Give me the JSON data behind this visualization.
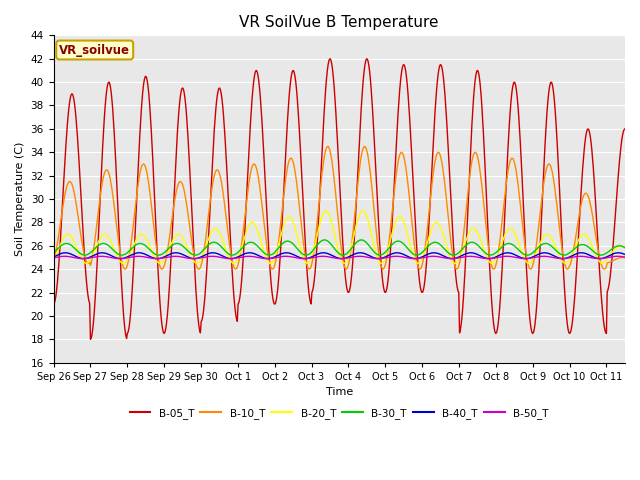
{
  "title": "VR SoilVue B Temperature",
  "ylabel": "Soil Temperature (C)",
  "xlabel": "Time",
  "ylim": [
    16,
    44
  ],
  "yticks": [
    16,
    18,
    20,
    22,
    24,
    26,
    28,
    30,
    32,
    34,
    36,
    38,
    40,
    42,
    44
  ],
  "x_labels": [
    "Sep 26",
    "Sep 27",
    "Sep 28",
    "Sep 29",
    "Sep 30",
    "Oct 1",
    "Oct 2",
    "Oct 3",
    "Oct 4",
    "Oct 5",
    "Oct 6",
    "Oct 7",
    "Oct 8",
    "Oct 9",
    "Oct 10",
    "Oct 11"
  ],
  "annotation_label": "VR_soilvue",
  "annotation_border_color": "#c8a000",
  "annotation_text_color": "#8B0000",
  "series_colors": {
    "B-05_T": "#cc0000",
    "B-10_T": "#ff8800",
    "B-20_T": "#ffff00",
    "B-30_T": "#00cc00",
    "B-40_T": "#0000cc",
    "B-50_T": "#cc00cc"
  },
  "fig_background": "#ffffff",
  "plot_background": "#e8e8e8",
  "grid_color": "#ffffff",
  "title_fontsize": 11,
  "n_days": 15.5,
  "n_points_per_day": 48,
  "b05_peaks": [
    39,
    40,
    40.5,
    39.5,
    39.5,
    41,
    41,
    42,
    42,
    41.5,
    41.5,
    41,
    40,
    40,
    36,
    36
  ],
  "b05_troughs": [
    21,
    18,
    18.5,
    18.5,
    19.5,
    21,
    21,
    22,
    22,
    22,
    22,
    18.5,
    18.5,
    18.5,
    18.5,
    22
  ],
  "b10_peaks": [
    31.5,
    32.5,
    33,
    31.5,
    32.5,
    33,
    33.5,
    34.5,
    34.5,
    34,
    34,
    34,
    33.5,
    33,
    30.5,
    25
  ],
  "b10_troughs": [
    24.5,
    24.0,
    24.0,
    24.0,
    24.0,
    24.0,
    24.0,
    24.0,
    24.0,
    24.0,
    24.0,
    24.0,
    24.0,
    24.0,
    24.0,
    24.5
  ],
  "b20_peaks": [
    27,
    27,
    27,
    27,
    27.5,
    28,
    28.5,
    29,
    29,
    28.5,
    28,
    27.5,
    27.5,
    27,
    27,
    26
  ],
  "b20_troughs": [
    24.5,
    24.5,
    24.5,
    24.5,
    24.5,
    24.5,
    24.5,
    24.5,
    24.5,
    24.5,
    24.5,
    24.5,
    24.5,
    24.5,
    24.5,
    24.8
  ],
  "b30_peaks": [
    26.2,
    26.2,
    26.2,
    26.2,
    26.3,
    26.3,
    26.4,
    26.5,
    26.5,
    26.4,
    26.3,
    26.3,
    26.2,
    26.2,
    26.1,
    26.0
  ],
  "b30_troughs": [
    25.2,
    25.2,
    25.2,
    25.2,
    25.2,
    25.2,
    25.2,
    25.2,
    25.2,
    25.2,
    25.2,
    25.2,
    25.2,
    25.2,
    25.2,
    25.2
  ],
  "b40_peaks": [
    25.4,
    25.4,
    25.4,
    25.4,
    25.4,
    25.4,
    25.4,
    25.4,
    25.4,
    25.4,
    25.4,
    25.4,
    25.4,
    25.4,
    25.4,
    25.4
  ],
  "b40_troughs": [
    24.9,
    24.9,
    24.9,
    24.9,
    24.9,
    24.9,
    24.9,
    24.9,
    24.9,
    24.9,
    24.9,
    24.9,
    24.9,
    24.9,
    24.9,
    24.9
  ],
  "b50_peaks": [
    25.1,
    25.1,
    25.1,
    25.1,
    25.1,
    25.1,
    25.1,
    25.1,
    25.1,
    25.1,
    25.1,
    25.1,
    25.1,
    25.1,
    25.1,
    25.1
  ],
  "b50_troughs": [
    24.9,
    24.9,
    24.9,
    24.9,
    24.9,
    24.9,
    24.9,
    24.9,
    24.9,
    24.9,
    24.9,
    24.9,
    24.9,
    24.9,
    24.9,
    24.9
  ],
  "phase_offsets": [
    0.0,
    0.06,
    0.11,
    0.15,
    0.18,
    0.2
  ]
}
